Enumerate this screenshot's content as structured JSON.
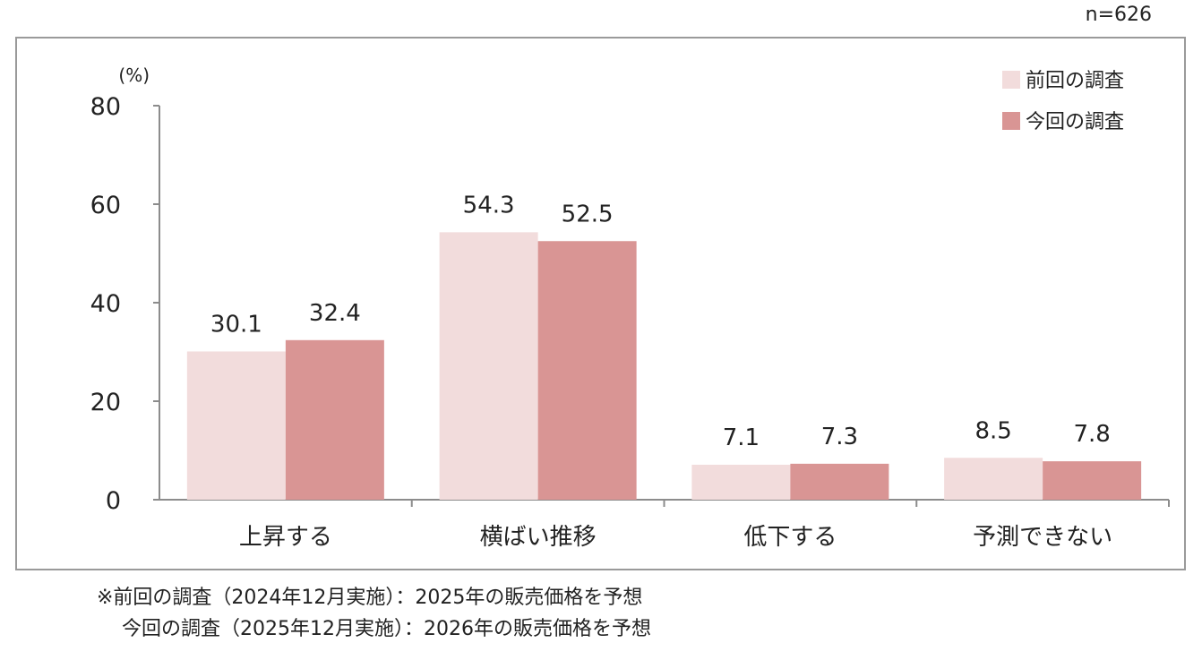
{
  "sample_size": "n=626",
  "unit_label": "(%)",
  "chart_data": {
    "type": "bar",
    "categories": [
      "上昇する",
      "横ばい推移",
      "低下する",
      "予測できない"
    ],
    "series": [
      {
        "name": "前回の調査",
        "color": "#f2dcdc",
        "values": [
          30.1,
          54.3,
          7.1,
          8.5
        ]
      },
      {
        "name": "今回の調査",
        "color": "#d99594",
        "values": [
          32.4,
          52.5,
          7.3,
          7.8
        ]
      }
    ],
    "ylim": [
      0,
      80
    ],
    "yticks": [
      0,
      20,
      40,
      60,
      80
    ],
    "data_labels": true,
    "legend": "top-right",
    "grid": false
  },
  "footnotes": [
    "※前回の調査（2024年12月実施）：2025年の販売価格を予想",
    "今回の調査（2025年12月実施）：2026年の販売価格を予想"
  ]
}
